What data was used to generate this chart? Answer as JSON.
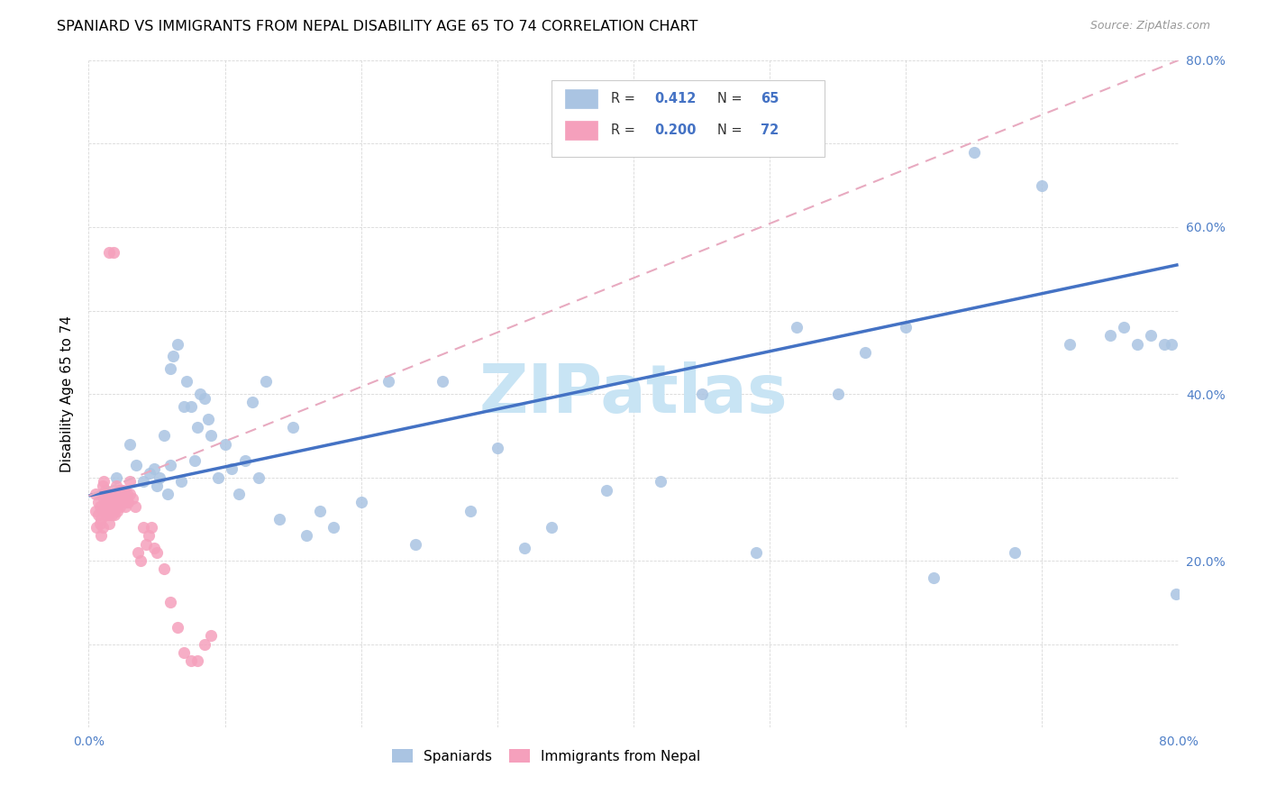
{
  "title": "SPANIARD VS IMMIGRANTS FROM NEPAL DISABILITY AGE 65 TO 74 CORRELATION CHART",
  "source": "Source: ZipAtlas.com",
  "ylabel": "Disability Age 65 to 74",
  "xlim": [
    0.0,
    0.8
  ],
  "ylim": [
    0.0,
    0.8
  ],
  "spaniard_color": "#aac4e2",
  "nepal_color": "#f5a0bc",
  "spaniard_line_color": "#4472c4",
  "nepal_line_color": "#e8aac0",
  "R_spaniard": 0.412,
  "N_spaniard": 65,
  "R_nepal": 0.2,
  "N_nepal": 72,
  "watermark": "ZIPatlas",
  "sp_line_x0": 0.0,
  "sp_line_y0": 0.278,
  "sp_line_x1": 0.8,
  "sp_line_y1": 0.555,
  "np_line_x0": 0.0,
  "np_line_y0": 0.278,
  "np_line_x1": 0.8,
  "np_line_y1": 0.8,
  "spaniard_x": [
    0.02,
    0.03,
    0.035,
    0.04,
    0.045,
    0.048,
    0.05,
    0.052,
    0.055,
    0.058,
    0.06,
    0.06,
    0.062,
    0.065,
    0.068,
    0.07,
    0.072,
    0.075,
    0.078,
    0.08,
    0.082,
    0.085,
    0.088,
    0.09,
    0.095,
    0.1,
    0.105,
    0.11,
    0.115,
    0.12,
    0.125,
    0.13,
    0.14,
    0.15,
    0.16,
    0.17,
    0.18,
    0.2,
    0.22,
    0.24,
    0.26,
    0.28,
    0.3,
    0.32,
    0.34,
    0.38,
    0.42,
    0.45,
    0.49,
    0.52,
    0.55,
    0.57,
    0.6,
    0.62,
    0.65,
    0.68,
    0.7,
    0.72,
    0.75,
    0.76,
    0.77,
    0.78,
    0.79,
    0.795,
    0.798
  ],
  "spaniard_y": [
    0.3,
    0.34,
    0.315,
    0.295,
    0.305,
    0.31,
    0.29,
    0.3,
    0.35,
    0.28,
    0.315,
    0.43,
    0.445,
    0.46,
    0.295,
    0.385,
    0.415,
    0.385,
    0.32,
    0.36,
    0.4,
    0.395,
    0.37,
    0.35,
    0.3,
    0.34,
    0.31,
    0.28,
    0.32,
    0.39,
    0.3,
    0.415,
    0.25,
    0.36,
    0.23,
    0.26,
    0.24,
    0.27,
    0.415,
    0.22,
    0.415,
    0.26,
    0.335,
    0.215,
    0.24,
    0.285,
    0.295,
    0.4,
    0.21,
    0.48,
    0.4,
    0.45,
    0.48,
    0.18,
    0.69,
    0.21,
    0.65,
    0.46,
    0.47,
    0.48,
    0.46,
    0.47,
    0.46,
    0.46,
    0.16
  ],
  "nepal_x": [
    0.005,
    0.005,
    0.006,
    0.007,
    0.007,
    0.008,
    0.008,
    0.009,
    0.009,
    0.01,
    0.01,
    0.01,
    0.011,
    0.011,
    0.012,
    0.012,
    0.013,
    0.013,
    0.014,
    0.014,
    0.015,
    0.015,
    0.015,
    0.016,
    0.016,
    0.017,
    0.017,
    0.018,
    0.018,
    0.019,
    0.019,
    0.02,
    0.02,
    0.021,
    0.021,
    0.022,
    0.022,
    0.023,
    0.023,
    0.024,
    0.024,
    0.025,
    0.025,
    0.026,
    0.026,
    0.027,
    0.027,
    0.028,
    0.028,
    0.029,
    0.03,
    0.03,
    0.032,
    0.034,
    0.036,
    0.038,
    0.04,
    0.042,
    0.044,
    0.046,
    0.048,
    0.05,
    0.055,
    0.06,
    0.065,
    0.07,
    0.075,
    0.08,
    0.085,
    0.09,
    0.015,
    0.018
  ],
  "nepal_y": [
    0.26,
    0.28,
    0.24,
    0.255,
    0.27,
    0.245,
    0.265,
    0.25,
    0.23,
    0.26,
    0.24,
    0.29,
    0.275,
    0.295,
    0.265,
    0.285,
    0.255,
    0.275,
    0.26,
    0.28,
    0.255,
    0.27,
    0.245,
    0.26,
    0.28,
    0.255,
    0.265,
    0.26,
    0.275,
    0.265,
    0.255,
    0.27,
    0.29,
    0.26,
    0.275,
    0.27,
    0.285,
    0.265,
    0.28,
    0.27,
    0.285,
    0.27,
    0.285,
    0.27,
    0.28,
    0.265,
    0.275,
    0.27,
    0.28,
    0.27,
    0.28,
    0.295,
    0.275,
    0.265,
    0.21,
    0.2,
    0.24,
    0.22,
    0.23,
    0.24,
    0.215,
    0.21,
    0.19,
    0.15,
    0.12,
    0.09,
    0.08,
    0.08,
    0.1,
    0.11,
    0.57,
    0.57
  ]
}
